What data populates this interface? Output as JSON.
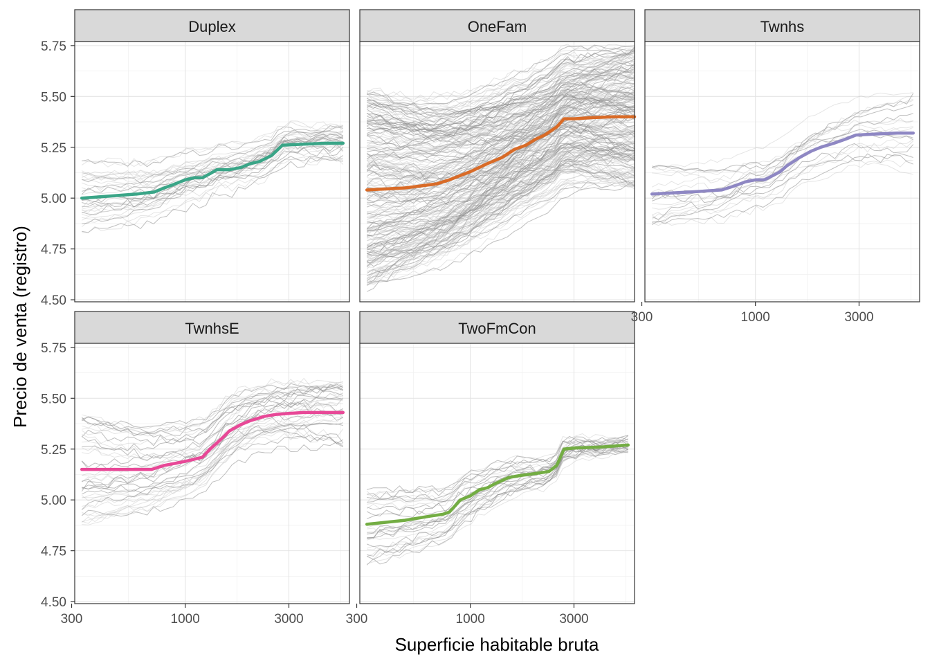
{
  "chart_data": {
    "type": "line",
    "facet_layout": "3 columns x 2 rows, shared y axis, log10 x axis",
    "xlabel": "Superficie habitable bruta",
    "ylabel": "Precio de venta (registro)",
    "x_scale": "log10",
    "xlim": [
      310,
      5700
    ],
    "ylim": [
      4.49,
      5.77
    ],
    "x_ticks": [
      300,
      1000,
      3000
    ],
    "x_tick_labels": [
      "300",
      "1000",
      "3000"
    ],
    "y_ticks": [
      4.5,
      4.75,
      5.0,
      5.25,
      5.5,
      5.75
    ],
    "y_tick_labels": [
      "4.50",
      "4.75",
      "5.00",
      "5.25",
      "5.50",
      "5.75"
    ],
    "grid": true,
    "legend": "none",
    "individual_curve_color": "#9e9e9e",
    "panels": [
      {
        "title": "Duplex",
        "color": "#3aa587",
        "x": [
          334,
          450,
          600,
          720,
          800,
          900,
          1000,
          1100,
          1200,
          1300,
          1400,
          1500,
          1600,
          1800,
          2000,
          2200,
          2500,
          2800,
          3500,
          4500,
          5330
        ],
        "y": [
          5.0,
          5.01,
          5.02,
          5.03,
          5.05,
          5.07,
          5.09,
          5.1,
          5.1,
          5.12,
          5.14,
          5.14,
          5.14,
          5.15,
          5.17,
          5.18,
          5.21,
          5.26,
          5.265,
          5.27,
          5.27
        ],
        "individual_curves": 35,
        "individual_range": [
          4.82,
          5.36
        ]
      },
      {
        "title": "OneFam",
        "color": "#d96b27",
        "x": [
          334,
          500,
          700,
          800,
          1000,
          1200,
          1400,
          1600,
          1800,
          2000,
          2200,
          2500,
          2700,
          3000,
          3500,
          4500,
          5700
        ],
        "y": [
          5.04,
          5.05,
          5.07,
          5.09,
          5.13,
          5.17,
          5.2,
          5.24,
          5.26,
          5.29,
          5.31,
          5.35,
          5.39,
          5.39,
          5.395,
          5.4,
          5.4
        ],
        "individual_curves": 220,
        "individual_range": [
          4.54,
          5.75
        ]
      },
      {
        "title": "Twnhs",
        "color": "#8e87c3",
        "x": [
          334,
          500,
          700,
          800,
          900,
          1000,
          1100,
          1200,
          1300,
          1400,
          1600,
          1800,
          2000,
          2300,
          2600,
          2900,
          3500,
          4500,
          5330
        ],
        "y": [
          5.02,
          5.03,
          5.04,
          5.06,
          5.08,
          5.09,
          5.09,
          5.11,
          5.13,
          5.16,
          5.2,
          5.23,
          5.25,
          5.27,
          5.29,
          5.31,
          5.315,
          5.32,
          5.32
        ],
        "individual_curves": 20,
        "individual_range": [
          4.87,
          5.54
        ]
      },
      {
        "title": "TwnhsE",
        "color": "#e84897",
        "x": [
          334,
          500,
          700,
          800,
          900,
          1000,
          1100,
          1200,
          1300,
          1400,
          1500,
          1600,
          1800,
          2000,
          2300,
          2600,
          3000,
          3500,
          4500,
          5330
        ],
        "y": [
          5.15,
          5.15,
          5.15,
          5.17,
          5.18,
          5.19,
          5.2,
          5.21,
          5.25,
          5.28,
          5.31,
          5.34,
          5.37,
          5.39,
          5.41,
          5.42,
          5.425,
          5.43,
          5.43,
          5.43
        ],
        "individual_curves": 40,
        "individual_range": [
          4.88,
          5.59
        ]
      },
      {
        "title": "TwoFmCon",
        "color": "#73ad43",
        "x": [
          334,
          500,
          650,
          750,
          800,
          850,
          900,
          1000,
          1100,
          1200,
          1300,
          1500,
          1700,
          2000,
          2300,
          2500,
          2700,
          3000,
          4000,
          5330
        ],
        "y": [
          4.88,
          4.9,
          4.92,
          4.93,
          4.94,
          4.97,
          5.0,
          5.02,
          5.05,
          5.06,
          5.08,
          5.11,
          5.12,
          5.13,
          5.14,
          5.17,
          5.25,
          5.255,
          5.26,
          5.27
        ],
        "individual_curves": 30,
        "individual_range": [
          4.67,
          5.31
        ]
      }
    ]
  }
}
